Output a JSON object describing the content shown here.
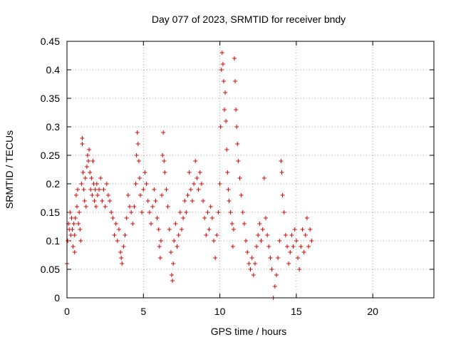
{
  "chart_data": {
    "type": "scatter",
    "title": "Day 077 of 2023, SRMTID for receiver bndy",
    "xlabel": "GPS time / hours",
    "ylabel": "SRMTID / TECUs",
    "xlim": [
      0,
      24
    ],
    "ylim": [
      0,
      0.45
    ],
    "grid": true,
    "marker": "+",
    "color": "#e00000",
    "x_ticks": [
      0,
      5,
      10,
      15,
      20
    ],
    "y_ticks": [
      0,
      0.05,
      0.1,
      0.15,
      0.2,
      0.25,
      0.3,
      0.35,
      0.4,
      0.45
    ],
    "x_tick_labels": [
      "0",
      "5",
      "10",
      "15",
      "20"
    ],
    "y_tick_labels": [
      "0",
      "0.05",
      "0.1",
      "0.15",
      "0.2",
      "0.25",
      "0.3",
      "0.35",
      "0.4",
      "0.45"
    ],
    "points": [
      [
        0.0,
        0.06
      ],
      [
        0.05,
        0.1
      ],
      [
        0.1,
        0.13
      ],
      [
        0.15,
        0.12
      ],
      [
        0.2,
        0.15
      ],
      [
        0.25,
        0.11
      ],
      [
        0.3,
        0.14
      ],
      [
        0.35,
        0.12
      ],
      [
        0.4,
        0.09
      ],
      [
        0.45,
        0.13
      ],
      [
        0.5,
        0.08
      ],
      [
        0.5,
        0.11
      ],
      [
        0.55,
        0.14
      ],
      [
        0.6,
        0.18
      ],
      [
        0.65,
        0.16
      ],
      [
        0.7,
        0.19
      ],
      [
        0.75,
        0.13
      ],
      [
        0.8,
        0.15
      ],
      [
        0.85,
        0.12
      ],
      [
        0.9,
        0.1
      ],
      [
        0.95,
        0.2
      ],
      [
        1.0,
        0.27
      ],
      [
        1.0,
        0.28
      ],
      [
        1.05,
        0.22
      ],
      [
        1.1,
        0.19
      ],
      [
        1.15,
        0.17
      ],
      [
        1.2,
        0.21
      ],
      [
        1.25,
        0.16
      ],
      [
        1.3,
        0.23
      ],
      [
        1.35,
        0.25
      ],
      [
        1.4,
        0.24
      ],
      [
        1.45,
        0.26
      ],
      [
        1.5,
        0.22
      ],
      [
        1.55,
        0.19
      ],
      [
        1.6,
        0.21
      ],
      [
        1.65,
        0.18
      ],
      [
        1.7,
        0.24
      ],
      [
        1.75,
        0.2
      ],
      [
        1.8,
        0.17
      ],
      [
        1.85,
        0.19
      ],
      [
        1.9,
        0.16
      ],
      [
        1.95,
        0.2
      ],
      [
        2.0,
        0.18
      ],
      [
        2.1,
        0.19
      ],
      [
        2.2,
        0.21
      ],
      [
        2.3,
        0.17
      ],
      [
        2.4,
        0.19
      ],
      [
        2.5,
        0.16
      ],
      [
        2.6,
        0.2
      ],
      [
        2.7,
        0.18
      ],
      [
        2.8,
        0.17
      ],
      [
        2.9,
        0.15
      ],
      [
        3.0,
        0.14
      ],
      [
        3.1,
        0.11
      ],
      [
        3.2,
        0.13
      ],
      [
        3.3,
        0.1
      ],
      [
        3.4,
        0.12
      ],
      [
        3.5,
        0.08
      ],
      [
        3.55,
        0.07
      ],
      [
        3.6,
        0.06
      ],
      [
        3.7,
        0.09
      ],
      [
        3.8,
        0.11
      ],
      [
        3.9,
        0.14
      ],
      [
        4.0,
        0.18
      ],
      [
        4.1,
        0.16
      ],
      [
        4.2,
        0.15
      ],
      [
        4.3,
        0.13
      ],
      [
        4.4,
        0.16
      ],
      [
        4.5,
        0.2
      ],
      [
        4.55,
        0.25
      ],
      [
        4.6,
        0.29
      ],
      [
        4.65,
        0.27
      ],
      [
        4.7,
        0.24
      ],
      [
        4.75,
        0.21
      ],
      [
        4.8,
        0.18
      ],
      [
        4.9,
        0.15
      ],
      [
        5.0,
        0.19
      ],
      [
        5.1,
        0.22
      ],
      [
        5.2,
        0.2
      ],
      [
        5.3,
        0.17
      ],
      [
        5.4,
        0.15
      ],
      [
        5.5,
        0.13
      ],
      [
        5.6,
        0.16
      ],
      [
        5.7,
        0.19
      ],
      [
        5.8,
        0.17
      ],
      [
        5.9,
        0.14
      ],
      [
        6.0,
        0.12
      ],
      [
        6.05,
        0.09
      ],
      [
        6.1,
        0.07
      ],
      [
        6.15,
        0.1
      ],
      [
        6.2,
        0.18
      ],
      [
        6.25,
        0.25
      ],
      [
        6.3,
        0.29
      ],
      [
        6.35,
        0.24
      ],
      [
        6.4,
        0.22
      ],
      [
        6.5,
        0.19
      ],
      [
        6.6,
        0.16
      ],
      [
        6.7,
        0.12
      ],
      [
        6.8,
        0.08
      ],
      [
        6.85,
        0.04
      ],
      [
        6.9,
        0.03
      ],
      [
        6.95,
        0.06
      ],
      [
        7.0,
        0.1
      ],
      [
        7.1,
        0.13
      ],
      [
        7.2,
        0.09
      ],
      [
        7.3,
        0.11
      ],
      [
        7.4,
        0.15
      ],
      [
        7.5,
        0.12
      ],
      [
        7.6,
        0.14
      ],
      [
        7.7,
        0.17
      ],
      [
        7.8,
        0.15
      ],
      [
        7.9,
        0.18
      ],
      [
        8.0,
        0.22
      ],
      [
        8.1,
        0.19
      ],
      [
        8.2,
        0.17
      ],
      [
        8.3,
        0.2
      ],
      [
        8.4,
        0.24
      ],
      [
        8.5,
        0.21
      ],
      [
        8.6,
        0.19
      ],
      [
        8.7,
        0.22
      ],
      [
        8.8,
        0.2
      ],
      [
        8.9,
        0.17
      ],
      [
        9.0,
        0.14
      ],
      [
        9.1,
        0.11
      ],
      [
        9.2,
        0.15
      ],
      [
        9.3,
        0.12
      ],
      [
        9.4,
        0.16
      ],
      [
        9.5,
        0.14
      ],
      [
        9.6,
        0.1
      ],
      [
        9.7,
        0.07
      ],
      [
        9.8,
        0.11
      ],
      [
        9.9,
        0.15
      ],
      [
        10.0,
        0.2
      ],
      [
        10.05,
        0.3
      ],
      [
        10.1,
        0.4
      ],
      [
        10.15,
        0.43
      ],
      [
        10.2,
        0.41
      ],
      [
        10.25,
        0.38
      ],
      [
        10.3,
        0.33
      ],
      [
        10.35,
        0.36
      ],
      [
        10.4,
        0.31
      ],
      [
        10.45,
        0.26
      ],
      [
        10.5,
        0.22
      ],
      [
        10.55,
        0.19
      ],
      [
        10.6,
        0.17
      ],
      [
        10.7,
        0.15
      ],
      [
        10.8,
        0.13
      ],
      [
        10.85,
        0.09
      ],
      [
        10.9,
        0.12
      ],
      [
        10.95,
        0.42
      ],
      [
        11.0,
        0.38
      ],
      [
        11.05,
        0.33
      ],
      [
        11.1,
        0.3
      ],
      [
        11.15,
        0.27
      ],
      [
        11.2,
        0.24
      ],
      [
        11.3,
        0.21
      ],
      [
        11.4,
        0.18
      ],
      [
        11.5,
        0.15
      ],
      [
        11.6,
        0.13
      ],
      [
        11.7,
        0.1
      ],
      [
        11.8,
        0.08
      ],
      [
        11.9,
        0.06
      ],
      [
        12.0,
        0.05
      ],
      [
        12.1,
        0.07
      ],
      [
        12.2,
        0.04
      ],
      [
        12.3,
        0.06
      ],
      [
        12.4,
        0.09
      ],
      [
        12.5,
        0.11
      ],
      [
        12.6,
        0.13
      ],
      [
        12.7,
        0.1
      ],
      [
        12.8,
        0.12
      ],
      [
        12.9,
        0.21
      ],
      [
        13.0,
        0.14
      ],
      [
        13.1,
        0.11
      ],
      [
        13.2,
        0.09
      ],
      [
        13.3,
        0.07
      ],
      [
        13.4,
        0.05
      ],
      [
        13.5,
        0.0
      ],
      [
        13.6,
        0.02
      ],
      [
        13.7,
        0.04
      ],
      [
        13.8,
        0.07
      ],
      [
        13.9,
        0.1
      ],
      [
        14.0,
        0.24
      ],
      [
        14.05,
        0.22
      ],
      [
        14.1,
        0.18
      ],
      [
        14.2,
        0.15
      ],
      [
        14.3,
        0.11
      ],
      [
        14.4,
        0.09
      ],
      [
        14.5,
        0.06
      ],
      [
        14.6,
        0.08
      ],
      [
        14.7,
        0.11
      ],
      [
        14.8,
        0.09
      ],
      [
        14.9,
        0.12
      ],
      [
        15.0,
        0.1
      ],
      [
        15.1,
        0.07
      ],
      [
        15.2,
        0.05
      ],
      [
        15.3,
        0.09
      ],
      [
        15.4,
        0.12
      ],
      [
        15.5,
        0.08
      ],
      [
        15.6,
        0.11
      ],
      [
        15.7,
        0.14
      ],
      [
        15.8,
        0.09
      ],
      [
        15.9,
        0.12
      ],
      [
        16.0,
        0.1
      ]
    ]
  }
}
